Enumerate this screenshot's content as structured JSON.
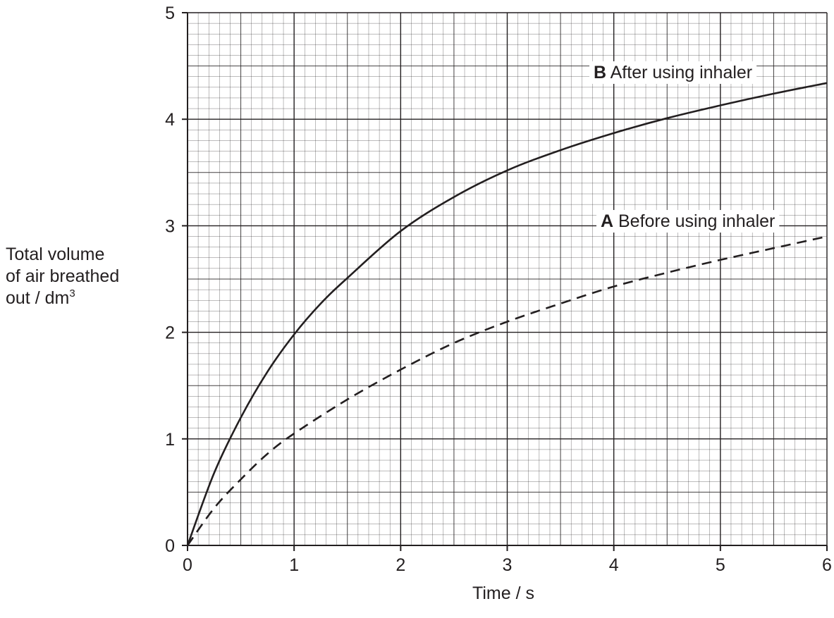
{
  "chart_data": {
    "type": "line",
    "xlabel": "Time / s",
    "ylabel": {
      "lines": [
        "Total volume",
        "of air breathed",
        "out / dm"
      ],
      "unit_superscript": "3"
    },
    "xlim": [
      0,
      6
    ],
    "ylim": [
      0,
      5
    ],
    "x_ticks": [
      "0",
      "1",
      "2",
      "3",
      "4",
      "5",
      "6"
    ],
    "y_ticks": [
      "0",
      "1",
      "2",
      "3",
      "4",
      "5"
    ],
    "grid": true,
    "series": [
      {
        "name": "A",
        "label": "Before using inhaler",
        "style": "dashed",
        "x": [
          0,
          0.25,
          0.5,
          0.75,
          1,
          1.5,
          2,
          2.5,
          3,
          3.5,
          4,
          4.5,
          5,
          5.5,
          6
        ],
        "y": [
          0,
          0.35,
          0.62,
          0.86,
          1.05,
          1.37,
          1.65,
          1.9,
          2.1,
          2.27,
          2.43,
          2.56,
          2.68,
          2.79,
          2.9
        ]
      },
      {
        "name": "B",
        "label": "After using inhaler",
        "style": "solid",
        "x": [
          0,
          0.25,
          0.5,
          0.75,
          1,
          1.25,
          1.5,
          2,
          2.5,
          3,
          3.5,
          4,
          4.5,
          5,
          5.5,
          6
        ],
        "y": [
          0,
          0.68,
          1.2,
          1.63,
          1.98,
          2.27,
          2.51,
          2.95,
          3.27,
          3.52,
          3.71,
          3.87,
          4.01,
          4.13,
          4.24,
          4.34
        ]
      }
    ],
    "colors": {
      "line": "#231f20",
      "grid": "#231f20"
    }
  }
}
